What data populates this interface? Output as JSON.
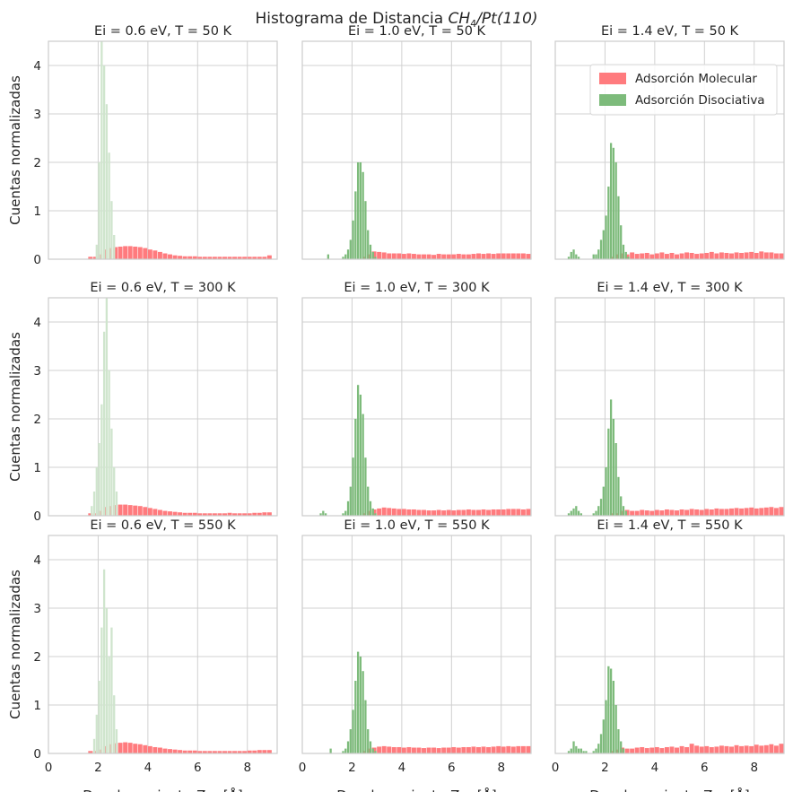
{
  "figure": {
    "title_prefix": "Histograma de Distancia ",
    "title_math": "CH",
    "title_sub": "4",
    "title_rest": "/Pt(110)",
    "ylabel": "Cuentas normalizadas",
    "xlabel_prefix": "Desplazamiento ",
    "xlabel_math": "Z",
    "xlabel_sub": "CM",
    "xlabel_suffix": " [Å]",
    "colors": {
      "molecular": "#ff7b7e",
      "disociativa": "#7dbb7b",
      "disociativa_faint": "#cfe5cd",
      "grid": "#d0d0d0",
      "frame": "#cccccc"
    },
    "legend": {
      "placement": "upper-right of panel Ei = 1.4 eV, T = 50 K",
      "items": [
        "Adsorción Molecular",
        "Adsorción Disociativa"
      ]
    }
  },
  "chart_data": [
    {
      "type": "bar",
      "title": "Ei = 0.6 eV, T = 50 K",
      "xlim": [
        0,
        9.2
      ],
      "ylim": [
        0,
        4.5
      ],
      "xticks": [
        "0",
        "2",
        "4",
        "6",
        "8"
      ],
      "yticks": [
        "0",
        "1",
        "2",
        "3",
        "4"
      ],
      "bin_width": 0.1,
      "disociativa_faint": true,
      "molecular": {
        "x_start": 1.6,
        "width": 0.2,
        "values": [
          0.05,
          0.05,
          0.1,
          0.2,
          0.23,
          0.25,
          0.26,
          0.27,
          0.27,
          0.26,
          0.25,
          0.23,
          0.2,
          0.18,
          0.15,
          0.12,
          0.1,
          0.08,
          0.07,
          0.06,
          0.06,
          0.06,
          0.05,
          0.05,
          0.05,
          0.05,
          0.05,
          0.05,
          0.05,
          0.05,
          0.05,
          0.05,
          0.05,
          0.05,
          0.05,
          0.05,
          0.08
        ]
      },
      "disociativa": {
        "x_start": 1.9,
        "values": [
          0.3,
          2.0,
          4.5,
          4.0,
          3.2,
          2.2,
          1.2,
          0.5
        ]
      }
    },
    {
      "type": "bar",
      "title": "Ei = 1.0 eV, T = 50 K",
      "xlim": [
        0,
        9.2
      ],
      "ylim": [
        0,
        4.5
      ],
      "xticks": [
        "0",
        "2",
        "4",
        "6",
        "8"
      ],
      "yticks": [
        "0",
        "1",
        "2",
        "3",
        "4"
      ],
      "bin_width": 0.1,
      "disociativa_faint": false,
      "molecular": {
        "x_start": 2.4,
        "width": 0.2,
        "values": [
          0.05,
          0.1,
          0.16,
          0.15,
          0.14,
          0.12,
          0.12,
          0.12,
          0.11,
          0.12,
          0.11,
          0.1,
          0.1,
          0.1,
          0.09,
          0.11,
          0.1,
          0.1,
          0.1,
          0.11,
          0.1,
          0.1,
          0.11,
          0.12,
          0.11,
          0.12,
          0.11,
          0.12,
          0.12,
          0.12,
          0.12,
          0.12,
          0.12,
          0.11
        ]
      },
      "disociativa": {
        "x_start": 0.5,
        "values": [
          0,
          0,
          0,
          0,
          0,
          0.1,
          0,
          0,
          0,
          0,
          0,
          0.05,
          0.1,
          0.2,
          0.4,
          0.8,
          1.4,
          2.0,
          2.0,
          1.8,
          1.2,
          0.6,
          0.3,
          0.15,
          0.05
        ]
      }
    },
    {
      "type": "bar",
      "title": "Ei = 1.4 eV, T = 50 K",
      "xlim": [
        0,
        9.2
      ],
      "ylim": [
        0,
        4.5
      ],
      "xticks": [
        "0",
        "2",
        "4",
        "6",
        "8"
      ],
      "yticks": [
        "0",
        "1",
        "2",
        "3",
        "4"
      ],
      "bin_width": 0.1,
      "disociativa_faint": false,
      "legend": true,
      "molecular": {
        "x_start": 2.2,
        "width": 0.2,
        "values": [
          0.05,
          0.1,
          0.12,
          0.1,
          0.14,
          0.11,
          0.12,
          0.13,
          0.1,
          0.12,
          0.14,
          0.11,
          0.13,
          0.1,
          0.12,
          0.14,
          0.13,
          0.11,
          0.12,
          0.13,
          0.15,
          0.12,
          0.14,
          0.13,
          0.12,
          0.14,
          0.13,
          0.14,
          0.15,
          0.13,
          0.16,
          0.14,
          0.14,
          0.12,
          0.12
        ]
      },
      "disociativa": {
        "x_start": 0.5,
        "values": [
          0.05,
          0.15,
          0.2,
          0.1,
          0.05,
          0,
          0,
          0,
          0,
          0,
          0.1,
          0.1,
          0.2,
          0.4,
          0.6,
          0.9,
          1.5,
          2.4,
          2.3,
          2.0,
          1.3,
          0.7,
          0.3,
          0.15,
          0.05
        ]
      }
    },
    {
      "type": "bar",
      "title": "Ei = 0.6 eV, T = 300 K",
      "xlim": [
        0,
        9.2
      ],
      "ylim": [
        0,
        4.5
      ],
      "xticks": [
        "0",
        "2",
        "4",
        "6",
        "8"
      ],
      "yticks": [
        "0",
        "1",
        "2",
        "3",
        "4"
      ],
      "bin_width": 0.1,
      "disociativa_faint": true,
      "molecular": {
        "x_start": 1.6,
        "width": 0.2,
        "values": [
          0.05,
          0.05,
          0.1,
          0.18,
          0.2,
          0.22,
          0.23,
          0.23,
          0.22,
          0.21,
          0.2,
          0.18,
          0.16,
          0.14,
          0.12,
          0.1,
          0.09,
          0.08,
          0.07,
          0.06,
          0.06,
          0.06,
          0.05,
          0.05,
          0.05,
          0.05,
          0.05,
          0.05,
          0.06,
          0.05,
          0.05,
          0.05,
          0.05,
          0.06,
          0.06,
          0.07,
          0.07
        ]
      },
      "disociativa": {
        "x_start": 1.7,
        "values": [
          0.2,
          0.5,
          1.0,
          1.5,
          2.3,
          3.8,
          4.5,
          3.0,
          1.8,
          1.0,
          0.5
        ]
      }
    },
    {
      "type": "bar",
      "title": "Ei = 1.0 eV, T = 300 K",
      "xlim": [
        0,
        9.2
      ],
      "ylim": [
        0,
        4.5
      ],
      "xticks": [
        "0",
        "2",
        "4",
        "6",
        "8"
      ],
      "yticks": [
        "0",
        "1",
        "2",
        "3",
        "4"
      ],
      "bin_width": 0.1,
      "disociativa_faint": false,
      "molecular": {
        "x_start": 2.4,
        "width": 0.2,
        "values": [
          0.05,
          0.1,
          0.13,
          0.15,
          0.17,
          0.16,
          0.15,
          0.14,
          0.14,
          0.13,
          0.13,
          0.12,
          0.12,
          0.11,
          0.11,
          0.12,
          0.11,
          0.12,
          0.11,
          0.12,
          0.12,
          0.13,
          0.12,
          0.12,
          0.13,
          0.12,
          0.13,
          0.13,
          0.13,
          0.14,
          0.14,
          0.14,
          0.13,
          0.14
        ]
      },
      "disociativa": {
        "x_start": 0.5,
        "values": [
          0,
          0,
          0.05,
          0.1,
          0.05,
          0,
          0,
          0,
          0,
          0,
          0,
          0.05,
          0.1,
          0.3,
          0.6,
          1.2,
          2.0,
          2.7,
          2.5,
          2.1,
          1.2,
          0.6,
          0.3,
          0.15,
          0.05
        ]
      }
    },
    {
      "type": "bar",
      "title": "Ei = 1.4 eV, T = 300 K",
      "xlim": [
        0,
        9.2
      ],
      "ylim": [
        0,
        4.5
      ],
      "xticks": [
        "0",
        "2",
        "4",
        "6",
        "8"
      ],
      "yticks": [
        "0",
        "1",
        "2",
        "3",
        "4"
      ],
      "bin_width": 0.1,
      "disociativa_faint": false,
      "molecular": {
        "x_start": 2.2,
        "width": 0.2,
        "values": [
          0.05,
          0.05,
          0.1,
          0.12,
          0.1,
          0.1,
          0.12,
          0.11,
          0.1,
          0.12,
          0.11,
          0.13,
          0.12,
          0.11,
          0.13,
          0.12,
          0.14,
          0.13,
          0.12,
          0.14,
          0.13,
          0.15,
          0.14,
          0.14,
          0.15,
          0.16,
          0.15,
          0.16,
          0.17,
          0.15,
          0.16,
          0.17,
          0.18,
          0.16,
          0.18
        ]
      },
      "disociativa": {
        "x_start": 0.5,
        "values": [
          0.05,
          0.1,
          0.15,
          0.2,
          0.1,
          0.05,
          0,
          0,
          0,
          0,
          0.05,
          0.1,
          0.2,
          0.35,
          0.6,
          1.0,
          1.8,
          2.4,
          2.0,
          1.5,
          0.8,
          0.4,
          0.2,
          0.1
        ]
      }
    },
    {
      "type": "bar",
      "title": "Ei = 0.6 eV, T = 550 K",
      "xlim": [
        0,
        9.2
      ],
      "ylim": [
        0,
        4.5
      ],
      "xticks": [
        "0",
        "2",
        "4",
        "6",
        "8"
      ],
      "yticks": [
        "0",
        "1",
        "2",
        "3",
        "4"
      ],
      "bin_width": 0.1,
      "disociativa_faint": true,
      "molecular": {
        "x_start": 1.6,
        "width": 0.2,
        "values": [
          0.05,
          0.05,
          0.08,
          0.15,
          0.19,
          0.21,
          0.22,
          0.23,
          0.22,
          0.2,
          0.19,
          0.17,
          0.15,
          0.13,
          0.12,
          0.1,
          0.09,
          0.08,
          0.07,
          0.06,
          0.06,
          0.06,
          0.05,
          0.05,
          0.05,
          0.05,
          0.05,
          0.05,
          0.05,
          0.05,
          0.05,
          0.05,
          0.06,
          0.06,
          0.07,
          0.07,
          0.07
        ]
      },
      "disociativa": {
        "x_start": 1.8,
        "values": [
          0.3,
          0.8,
          1.5,
          2.6,
          3.8,
          3.0,
          2.0,
          2.6,
          1.2,
          0.5
        ]
      }
    },
    {
      "type": "bar",
      "title": "Ei = 1.0 eV, T = 550 K",
      "xlim": [
        0,
        9.2
      ],
      "ylim": [
        0,
        4.5
      ],
      "xticks": [
        "0",
        "2",
        "4",
        "6",
        "8"
      ],
      "yticks": [
        "0",
        "1",
        "2",
        "3",
        "4"
      ],
      "bin_width": 0.1,
      "disociativa_faint": false,
      "molecular": {
        "x_start": 2.4,
        "width": 0.2,
        "values": [
          0.05,
          0.1,
          0.12,
          0.14,
          0.15,
          0.14,
          0.13,
          0.13,
          0.12,
          0.13,
          0.12,
          0.12,
          0.11,
          0.12,
          0.12,
          0.11,
          0.12,
          0.12,
          0.13,
          0.12,
          0.13,
          0.13,
          0.14,
          0.13,
          0.14,
          0.13,
          0.14,
          0.15,
          0.14,
          0.15,
          0.14,
          0.15,
          0.15,
          0.15
        ]
      },
      "disociativa": {
        "x_start": 0.5,
        "values": [
          0,
          0,
          0,
          0,
          0,
          0,
          0.1,
          0,
          0,
          0,
          0,
          0.05,
          0.1,
          0.25,
          0.5,
          0.9,
          1.5,
          2.1,
          2.0,
          1.7,
          1.1,
          0.5,
          0.25,
          0.1,
          0.05
        ]
      }
    },
    {
      "type": "bar",
      "title": "Ei = 1.4 eV, T = 550 K",
      "xlim": [
        0,
        9.2
      ],
      "ylim": [
        0,
        4.5
      ],
      "xticks": [
        "0",
        "2",
        "4",
        "6",
        "8"
      ],
      "yticks": [
        "0",
        "1",
        "2",
        "3",
        "4"
      ],
      "bin_width": 0.1,
      "disociativa_faint": false,
      "molecular": {
        "x_start": 2.2,
        "width": 0.2,
        "values": [
          0.05,
          0.08,
          0.12,
          0.1,
          0.1,
          0.12,
          0.13,
          0.11,
          0.12,
          0.13,
          0.11,
          0.13,
          0.14,
          0.12,
          0.15,
          0.13,
          0.2,
          0.16,
          0.14,
          0.15,
          0.13,
          0.14,
          0.16,
          0.15,
          0.14,
          0.17,
          0.15,
          0.16,
          0.15,
          0.18,
          0.16,
          0.17,
          0.19,
          0.16,
          0.2
        ]
      },
      "disociativa": {
        "x_start": 0.5,
        "values": [
          0.05,
          0.1,
          0.25,
          0.15,
          0.1,
          0.1,
          0.05,
          0.05,
          0,
          0,
          0.05,
          0.1,
          0.2,
          0.4,
          0.7,
          1.1,
          1.8,
          1.75,
          1.5,
          1.0,
          0.5,
          0.25,
          0.1
        ]
      }
    }
  ]
}
